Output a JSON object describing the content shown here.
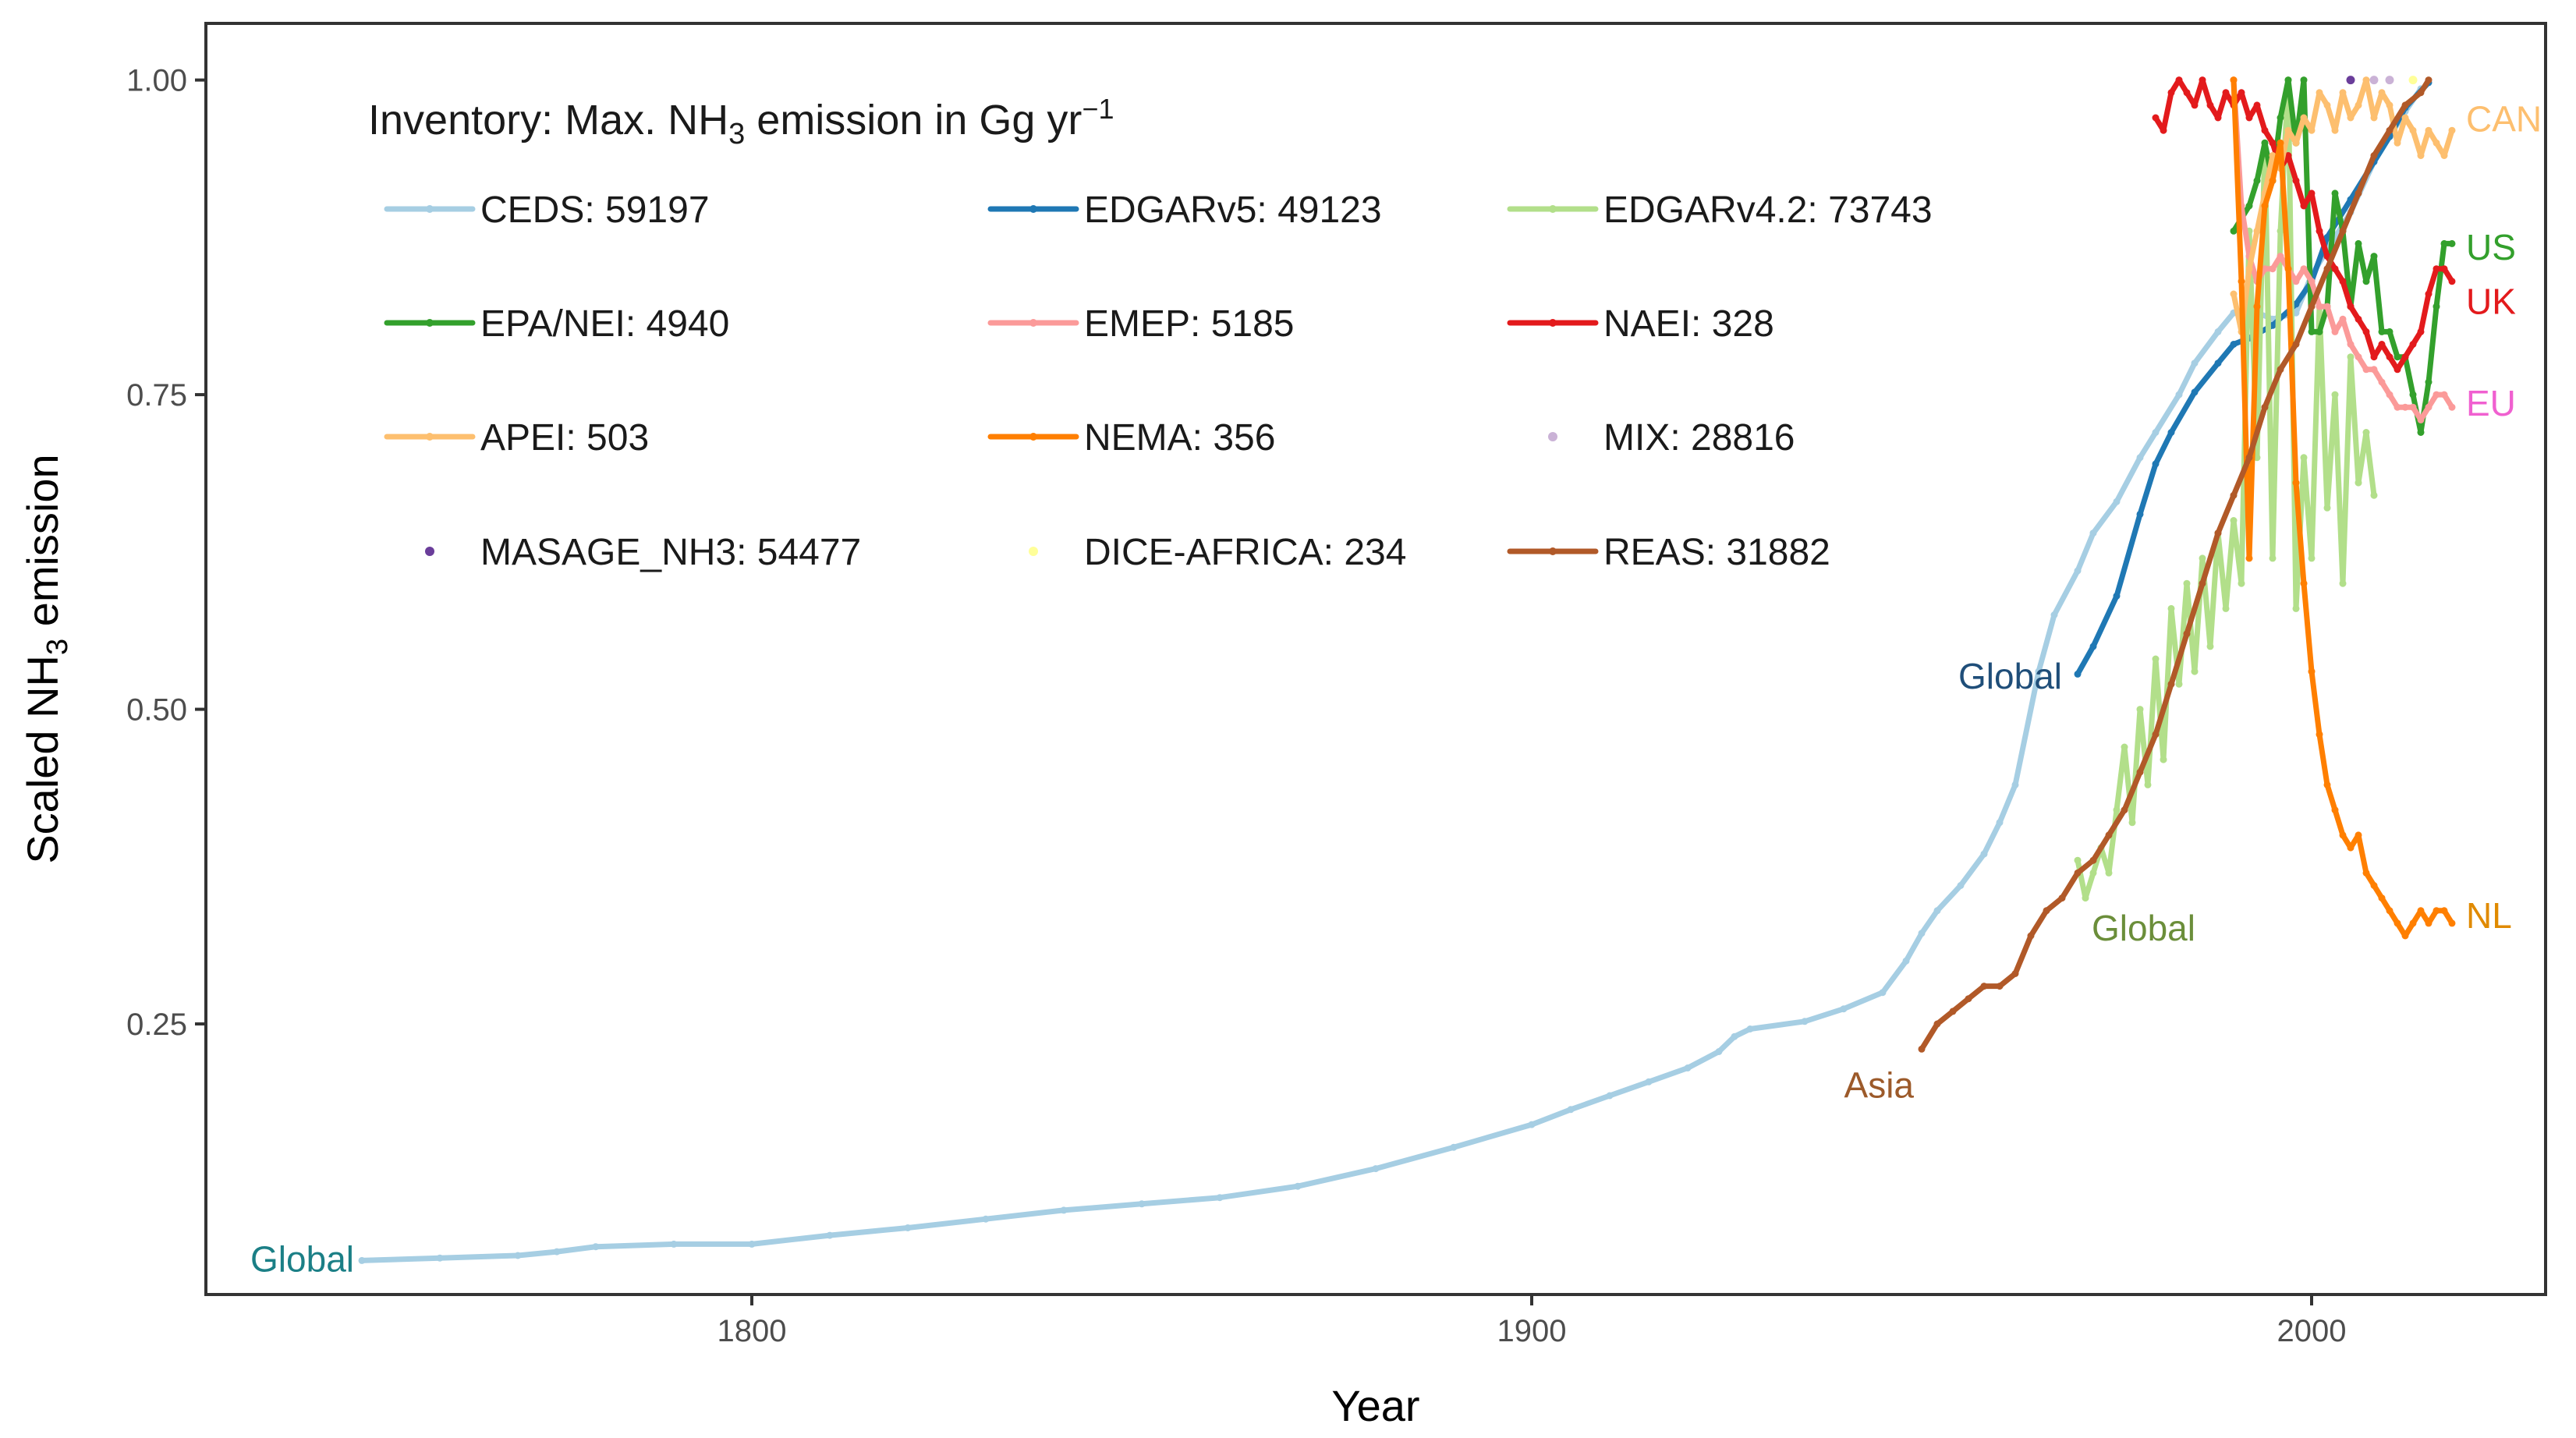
{
  "chart_data": {
    "type": "line",
    "title": "",
    "xlabel": "Year",
    "ylabel_main": "Scaled NH",
    "ylabel_sub": "3",
    "ylabel_rest": " emission",
    "xlim": [
      1730,
      2030
    ],
    "ylim": [
      0.035,
      1.045
    ],
    "xticks": [
      1800,
      1900,
      2000
    ],
    "yticks": [
      0.25,
      0.5,
      0.75,
      1.0
    ],
    "ytick_labels": [
      "0.25",
      "0.50",
      "0.75",
      "1.00"
    ],
    "xtick_labels": [
      "1800",
      "1900",
      "2000"
    ],
    "grid": false,
    "legend": {
      "position": "top-left inside",
      "title_pre": "Inventory: Max. NH",
      "title_sub": "3",
      "title_post": " emission in Gg yr",
      "title_sup": "−1",
      "items": [
        {
          "label": "CEDS: 59197",
          "color": "#a6cee3",
          "kind": "line"
        },
        {
          "label": "EDGARv5: 49123",
          "color": "#1f78b4",
          "kind": "line"
        },
        {
          "label": "EDGARv4.2: 73743",
          "color": "#b2df8a",
          "kind": "line"
        },
        {
          "label": "EPA/NEI: 4940",
          "color": "#33a02c",
          "kind": "line"
        },
        {
          "label": "EMEP: 5185",
          "color": "#fb9a99",
          "kind": "line"
        },
        {
          "label": "NAEI: 328",
          "color": "#e31a1c",
          "kind": "line"
        },
        {
          "label": "APEI: 503",
          "color": "#fdbf6f",
          "kind": "line"
        },
        {
          "label": "NEMA: 356",
          "color": "#ff7f00",
          "kind": "line"
        },
        {
          "label": "MIX: 28816",
          "color": "#cab2d6",
          "kind": "point"
        },
        {
          "label": "MASAGE_NH3: 54477",
          "color": "#6a3d9a",
          "kind": "point"
        },
        {
          "label": "DICE-AFRICA: 234",
          "color": "#ffff99",
          "kind": "point"
        },
        {
          "label": "REAS: 31882",
          "color": "#b15928",
          "kind": "line"
        }
      ]
    },
    "region_labels": [
      {
        "text": "Global",
        "x": 1750,
        "y": 0.062,
        "color": "#1b7f86",
        "anchor": "end"
      },
      {
        "text": "Global",
        "x": 1969,
        "y": 0.525,
        "color": "#1f4e79",
        "anchor": "end"
      },
      {
        "text": "Global",
        "x": 1971,
        "y": 0.325,
        "color": "#6b8e3a",
        "anchor": "start"
      },
      {
        "text": "Asia",
        "x": 1950,
        "y": 0.2,
        "color": "#9c5a2a",
        "anchor": "end"
      },
      {
        "text": "CAN",
        "x": 2019,
        "y": 0.968,
        "color": "#fdbf6f",
        "anchor": "start"
      },
      {
        "text": "US",
        "x": 2019,
        "y": 0.866,
        "color": "#33a02c",
        "anchor": "start"
      },
      {
        "text": "UK",
        "x": 2019,
        "y": 0.823,
        "color": "#e31a1c",
        "anchor": "start"
      },
      {
        "text": "EU",
        "x": 2019,
        "y": 0.742,
        "color": "#f060d0",
        "anchor": "start"
      },
      {
        "text": "NL",
        "x": 2019,
        "y": 0.335,
        "color": "#e08a00",
        "anchor": "start"
      }
    ],
    "series": [
      {
        "name": "CEDS",
        "color": "#a6cee3",
        "kind": "line",
        "x": [
          1750,
          1760,
          1770,
          1775,
          1780,
          1790,
          1800,
          1810,
          1820,
          1830,
          1840,
          1850,
          1860,
          1870,
          1880,
          1890,
          1900,
          1905,
          1910,
          1915,
          1920,
          1924,
          1926,
          1928,
          1935,
          1940,
          1945,
          1948,
          1950,
          1952,
          1955,
          1958,
          1960,
          1962,
          1965,
          1967,
          1970,
          1972,
          1975,
          1978,
          1980,
          1983,
          1985,
          1988,
          1990,
          1992,
          1995,
          1998,
          2000,
          2002,
          2005,
          2008,
          2010,
          2012,
          2014
        ],
        "y": [
          0.062,
          0.064,
          0.066,
          0.069,
          0.073,
          0.075,
          0.075,
          0.082,
          0.088,
          0.095,
          0.102,
          0.107,
          0.112,
          0.121,
          0.135,
          0.152,
          0.17,
          0.182,
          0.193,
          0.204,
          0.215,
          0.228,
          0.24,
          0.246,
          0.252,
          0.262,
          0.275,
          0.3,
          0.322,
          0.34,
          0.36,
          0.385,
          0.41,
          0.44,
          0.53,
          0.575,
          0.61,
          0.64,
          0.665,
          0.7,
          0.72,
          0.75,
          0.775,
          0.8,
          0.815,
          0.818,
          0.81,
          0.815,
          0.845,
          0.865,
          0.895,
          0.935,
          0.955,
          0.975,
          0.993
        ]
      },
      {
        "name": "EDGARv5",
        "color": "#1f78b4",
        "kind": "line",
        "x": [
          1970,
          1972,
          1975,
          1978,
          1980,
          1982,
          1985,
          1988,
          1990,
          1992,
          1995,
          1998,
          2000,
          2002,
          2005,
          2008,
          2010,
          2012,
          2015
        ],
        "y": [
          0.528,
          0.55,
          0.59,
          0.655,
          0.695,
          0.72,
          0.752,
          0.775,
          0.79,
          0.795,
          0.805,
          0.822,
          0.84,
          0.875,
          0.905,
          0.935,
          0.955,
          0.978,
          0.998
        ]
      },
      {
        "name": "EDGARv4.2",
        "color": "#b2df8a",
        "kind": "line",
        "x": [
          1970,
          1971,
          1972,
          1973,
          1974,
          1975,
          1976,
          1977,
          1978,
          1979,
          1980,
          1981,
          1982,
          1983,
          1984,
          1985,
          1986,
          1987,
          1988,
          1989,
          1990,
          1991,
          1992,
          1993,
          1994,
          1995,
          1996,
          1997,
          1998,
          1999,
          2000,
          2001,
          2002,
          2003,
          2004,
          2005,
          2006,
          2007,
          2008
        ],
        "y": [
          0.38,
          0.35,
          0.37,
          0.39,
          0.37,
          0.42,
          0.47,
          0.41,
          0.5,
          0.44,
          0.54,
          0.46,
          0.58,
          0.52,
          0.6,
          0.53,
          0.62,
          0.55,
          0.64,
          0.58,
          0.65,
          0.6,
          0.88,
          0.7,
          0.95,
          0.62,
          0.88,
          1.0,
          0.58,
          0.7,
          0.62,
          0.82,
          0.66,
          0.75,
          0.6,
          0.78,
          0.68,
          0.72,
          0.67
        ]
      },
      {
        "name": "EPA/NEI",
        "color": "#33a02c",
        "kind": "line",
        "x": [
          1990,
          1991,
          1992,
          1993,
          1994,
          1995,
          1996,
          1997,
          1998,
          1999,
          2000,
          2001,
          2002,
          2003,
          2004,
          2005,
          2006,
          2007,
          2008,
          2009,
          2010,
          2011,
          2012,
          2013,
          2014,
          2015,
          2016,
          2017,
          2018
        ],
        "y": [
          0.88,
          0.89,
          0.9,
          0.92,
          0.95,
          0.92,
          0.97,
          1.0,
          0.95,
          1.0,
          0.8,
          0.8,
          0.82,
          0.91,
          0.88,
          0.82,
          0.87,
          0.84,
          0.86,
          0.8,
          0.8,
          0.78,
          0.78,
          0.75,
          0.72,
          0.76,
          0.82,
          0.87,
          0.87
        ]
      },
      {
        "name": "EMEP",
        "color": "#fb9a99",
        "kind": "line",
        "x": [
          1990,
          1991,
          1992,
          1993,
          1994,
          1995,
          1996,
          1997,
          1998,
          1999,
          2000,
          2001,
          2002,
          2003,
          2004,
          2005,
          2006,
          2007,
          2008,
          2009,
          2010,
          2011,
          2012,
          2013,
          2014,
          2015,
          2016,
          2017,
          2018
        ],
        "y": [
          1.0,
          0.9,
          0.86,
          0.84,
          0.85,
          0.85,
          0.86,
          0.85,
          0.84,
          0.85,
          0.84,
          0.82,
          0.82,
          0.8,
          0.81,
          0.79,
          0.78,
          0.77,
          0.77,
          0.76,
          0.75,
          0.74,
          0.74,
          0.74,
          0.73,
          0.74,
          0.75,
          0.75,
          0.74
        ]
      },
      {
        "name": "NAEI",
        "color": "#e31a1c",
        "kind": "line",
        "x": [
          1980,
          1981,
          1982,
          1983,
          1984,
          1985,
          1986,
          1987,
          1988,
          1989,
          1990,
          1991,
          1992,
          1993,
          1994,
          1995,
          1996,
          1997,
          1998,
          1999,
          2000,
          2001,
          2002,
          2003,
          2004,
          2005,
          2006,
          2007,
          2008,
          2009,
          2010,
          2011,
          2012,
          2013,
          2014,
          2015,
          2016,
          2017,
          2018
        ],
        "y": [
          0.97,
          0.96,
          0.99,
          1.0,
          0.99,
          0.98,
          1.0,
          0.98,
          0.97,
          0.99,
          0.98,
          0.99,
          0.97,
          0.98,
          0.96,
          0.95,
          0.93,
          0.94,
          0.92,
          0.9,
          0.91,
          0.88,
          0.86,
          0.85,
          0.84,
          0.82,
          0.81,
          0.8,
          0.78,
          0.79,
          0.78,
          0.77,
          0.78,
          0.79,
          0.8,
          0.83,
          0.85,
          0.85,
          0.84
        ]
      },
      {
        "name": "APEI",
        "color": "#fdbf6f",
        "kind": "line",
        "x": [
          1990,
          1991,
          1992,
          1993,
          1994,
          1995,
          1996,
          1997,
          1998,
          1999,
          2000,
          2001,
          2002,
          2003,
          2004,
          2005,
          2006,
          2007,
          2008,
          2009,
          2010,
          2011,
          2012,
          2013,
          2014,
          2015,
          2016,
          2017,
          2018
        ],
        "y": [
          0.83,
          0.8,
          0.85,
          0.88,
          0.91,
          0.94,
          0.93,
          0.96,
          0.95,
          0.97,
          0.96,
          0.99,
          0.98,
          0.96,
          0.99,
          0.97,
          0.98,
          1.0,
          0.97,
          0.99,
          0.98,
          0.95,
          0.97,
          0.96,
          0.94,
          0.96,
          0.95,
          0.94,
          0.96
        ]
      },
      {
        "name": "NEMA",
        "color": "#ff7f00",
        "kind": "line",
        "x": [
          1990,
          1991,
          1992,
          1993,
          1994,
          1995,
          1996,
          1997,
          1998,
          1999,
          2000,
          2001,
          2002,
          2003,
          2004,
          2005,
          2006,
          2007,
          2008,
          2009,
          2010,
          2011,
          2012,
          2013,
          2014,
          2015,
          2016,
          2017,
          2018
        ],
        "y": [
          1.0,
          0.84,
          0.62,
          0.82,
          0.9,
          0.92,
          0.95,
          0.85,
          0.68,
          0.6,
          0.53,
          0.48,
          0.44,
          0.42,
          0.4,
          0.39,
          0.4,
          0.37,
          0.36,
          0.35,
          0.34,
          0.33,
          0.32,
          0.33,
          0.34,
          0.33,
          0.34,
          0.34,
          0.33
        ]
      },
      {
        "name": "MIX",
        "color": "#cab2d6",
        "kind": "point",
        "x": [
          2008,
          2010
        ],
        "y": [
          1.0,
          1.0
        ]
      },
      {
        "name": "MASAGE_NH3",
        "color": "#6a3d9a",
        "kind": "point",
        "x": [
          2005
        ],
        "y": [
          1.0
        ]
      },
      {
        "name": "DICE-AFRICA",
        "color": "#ffff99",
        "kind": "point",
        "x": [
          2013
        ],
        "y": [
          1.0
        ]
      },
      {
        "name": "REAS",
        "color": "#b15928",
        "kind": "line",
        "x": [
          1950,
          1952,
          1954,
          1956,
          1958,
          1960,
          1962,
          1964,
          1966,
          1968,
          1970,
          1972,
          1974,
          1976,
          1978,
          1980,
          1982,
          1984,
          1986,
          1988,
          1990,
          1992,
          1994,
          1996,
          1998,
          2000,
          2002,
          2004,
          2006,
          2008,
          2010,
          2012,
          2014,
          2015
        ],
        "y": [
          0.23,
          0.25,
          0.26,
          0.27,
          0.28,
          0.28,
          0.29,
          0.32,
          0.34,
          0.35,
          0.37,
          0.38,
          0.4,
          0.42,
          0.45,
          0.48,
          0.52,
          0.56,
          0.6,
          0.64,
          0.67,
          0.7,
          0.74,
          0.77,
          0.79,
          0.82,
          0.85,
          0.88,
          0.91,
          0.94,
          0.96,
          0.98,
          0.99,
          1.0
        ]
      }
    ]
  }
}
